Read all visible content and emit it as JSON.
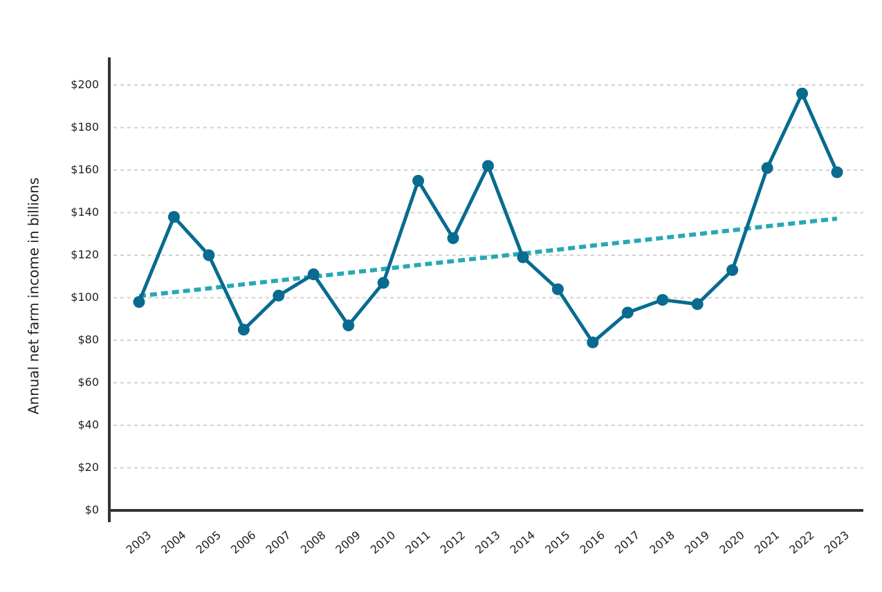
{
  "chart_data": {
    "type": "line",
    "y_label": "Annual net farm income in billions",
    "categories": [
      "2003",
      "2004",
      "2005",
      "2006",
      "2007",
      "2008",
      "2009",
      "2010",
      "2011",
      "2012",
      "2013",
      "2014",
      "2015",
      "2016",
      "2017",
      "2018",
      "2019",
      "2020",
      "2021",
      "2022",
      "2023"
    ],
    "series": [
      {
        "color": "#086b8f",
        "markers": true,
        "dashed": false,
        "values": [
          98,
          138,
          120,
          85,
          101,
          111,
          87,
          107,
          155,
          128,
          162,
          119,
          104,
          79,
          93,
          99,
          97,
          113,
          161,
          196,
          159
        ]
      },
      {
        "color": "#27a8b5",
        "markers": false,
        "dashed": true,
        "values": [
          100.8,
          102.6,
          104.4,
          106.3,
          108.1,
          109.9,
          111.7,
          113.5,
          115.4,
          117.2,
          119.0,
          120.8,
          122.6,
          124.5,
          126.3,
          128.1,
          129.9,
          131.7,
          133.6,
          135.4,
          137.2
        ]
      }
    ],
    "ylim": [
      0,
      213
    ],
    "yticks": [
      {
        "value": 0,
        "label": "$0"
      },
      {
        "value": 20,
        "label": "$20"
      },
      {
        "value": 40,
        "label": "$40"
      },
      {
        "value": 60,
        "label": "$60"
      },
      {
        "value": 80,
        "label": "$80"
      },
      {
        "value": 100,
        "label": "$100"
      },
      {
        "value": 120,
        "label": "$120"
      },
      {
        "value": 140,
        "label": "$140"
      },
      {
        "value": 160,
        "label": "$160"
      },
      {
        "value": 180,
        "label": "$180"
      },
      {
        "value": 200,
        "label": "$200"
      }
    ],
    "grid": true
  }
}
